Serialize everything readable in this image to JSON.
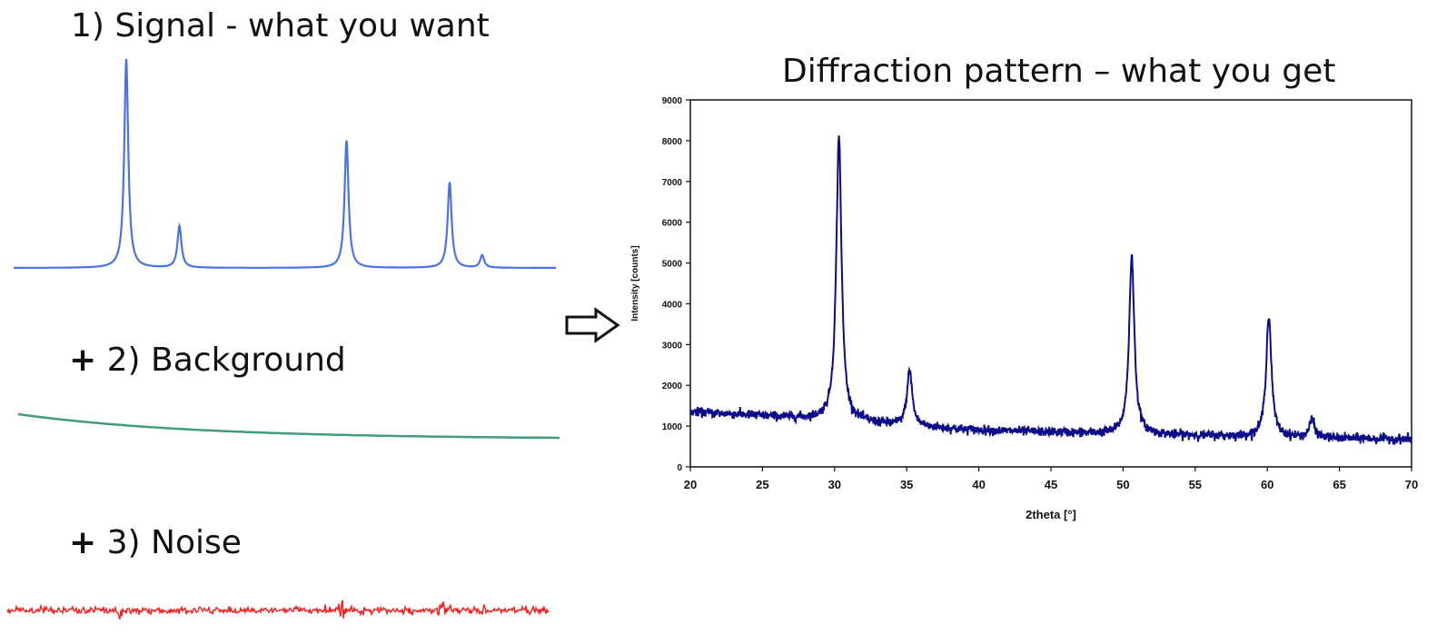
{
  "labels": {
    "signal": {
      "number": "1)",
      "text": "Signal - what you want"
    },
    "background": {
      "plus": "+",
      "text": "2) Background"
    },
    "noise": {
      "plus": "+",
      "text": "3) Noise"
    },
    "diffraction_title": "Diffraction pattern – what you get"
  },
  "icons": {
    "arrow": "right-arrow-icon"
  },
  "colors": {
    "signal": "#4a72e8",
    "background": "#3f9e78",
    "noise": "#ff1a1a",
    "pattern": "#0c0c8a"
  },
  "chart_data": [
    {
      "type": "line",
      "title": "1) Signal - what you want",
      "xlabel": "",
      "ylabel": "",
      "axes_visible": false,
      "peaks_relative_height": [
        {
          "position": 30.3,
          "height": 1.0
        },
        {
          "position": 35.2,
          "height": 0.2
        },
        {
          "position": 50.6,
          "height": 0.61
        },
        {
          "position": 60.1,
          "height": 0.41
        },
        {
          "position": 63.1,
          "height": 0.06
        }
      ]
    },
    {
      "type": "line",
      "title": "+ 2) Background",
      "xlabel": "",
      "ylabel": "",
      "axes_visible": false,
      "shape": "smoothly decreasing curve"
    },
    {
      "type": "line",
      "title": "+ 3) Noise",
      "xlabel": "",
      "ylabel": "",
      "axes_visible": false,
      "shape": "random noise band with small spikes at peak positions"
    },
    {
      "type": "line",
      "title": "Diffraction pattern – what you get",
      "xlabel": "2theta [°]",
      "ylabel": "Intensity [counts]",
      "xlim": [
        20,
        70
      ],
      "ylim": [
        0,
        9000
      ],
      "xticks": [
        "20",
        "25",
        "30",
        "35",
        "40",
        "45",
        "50",
        "55",
        "60",
        "65",
        "70"
      ],
      "yticks": [
        "0",
        "1000",
        "2000",
        "3000",
        "4000",
        "5000",
        "6000",
        "7000",
        "8000",
        "9000"
      ],
      "grid": false,
      "background_points": {
        "x": [
          20,
          25,
          30,
          35,
          40,
          45,
          50,
          55,
          60,
          65,
          70
        ],
        "y": [
          1350,
          1250,
          1150,
          1000,
          900,
          850,
          800,
          770,
          730,
          700,
          680
        ]
      },
      "peaks": [
        {
          "x": 30.3,
          "y": 8100
        },
        {
          "x": 35.2,
          "y": 2350
        },
        {
          "x": 50.6,
          "y": 5150
        },
        {
          "x": 60.1,
          "y": 3700
        },
        {
          "x": 63.1,
          "y": 1150
        }
      ]
    }
  ]
}
